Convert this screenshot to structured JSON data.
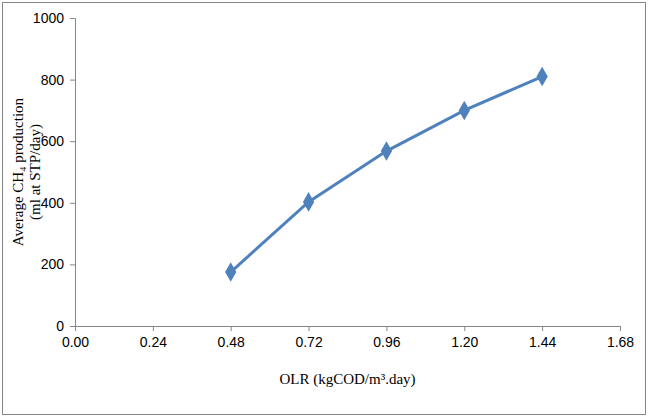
{
  "chart_data": {
    "type": "line",
    "x_label": "OLR (kgCOD/m³.day)",
    "y_label": "Average CH₄ production (ml at STP/day)",
    "x": [
      0.48,
      0.72,
      0.96,
      1.2,
      1.44
    ],
    "values": [
      175,
      403,
      568,
      700,
      810
    ],
    "color": "#4f81bd",
    "marker": "diamond",
    "grid": false,
    "xlim": [
      0,
      1.68
    ],
    "ylim": [
      0,
      1000
    ],
    "xticks": [
      {
        "value": 0,
        "label": "0.00"
      },
      {
        "value": 0.24,
        "label": "0.24"
      },
      {
        "value": 0.48,
        "label": "0.48"
      },
      {
        "value": 0.72,
        "label": "0.72"
      },
      {
        "value": 0.96,
        "label": "0.96"
      },
      {
        "value": 1.2,
        "label": "1.20"
      },
      {
        "value": 1.44,
        "label": "1.44"
      },
      {
        "value": 1.68,
        "label": "1.68"
      }
    ],
    "yticks": [
      0,
      200,
      400,
      600,
      800,
      1000
    ]
  }
}
